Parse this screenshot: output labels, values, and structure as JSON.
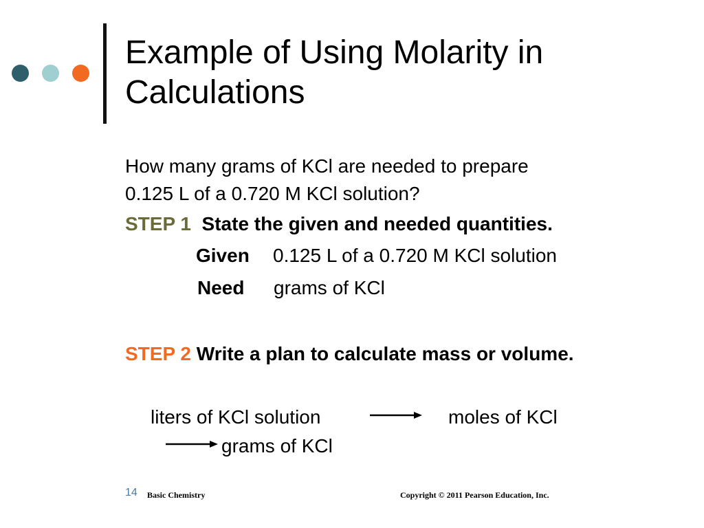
{
  "slide": {
    "title_line1": "Example of Using Molarity in",
    "title_line2": "Calculations",
    "question_line1": "How many grams of KCl are needed to prepare",
    "question_line2": "0.125 L of a 0.720 M KCl solution?"
  },
  "step1": {
    "label": "STEP 1",
    "text": "State the given and needed quantities.",
    "given_label": "Given",
    "given_value": "0.125 L of a 0.720 M KCl solution",
    "need_label": "Need",
    "need_value": "grams of KCl"
  },
  "step2": {
    "label": "STEP 2",
    "text": "Write a plan to calculate mass or volume.",
    "plan_from": "liters of KCl solution",
    "plan_mid": "moles of KCl",
    "plan_to": "grams of KCl"
  },
  "footer": {
    "page_number": "14",
    "book": "Basic Chemistry",
    "copyright": "Copyright © 2011 Pearson Education, Inc."
  },
  "colors": {
    "dot1": "#2f5f6a",
    "dot2": "#9fcfd1",
    "dot3": "#f26a22",
    "step1_label": "#6b6b3a",
    "step2_label": "#f26a22"
  },
  "icons": {
    "arrow": "right-arrow-icon"
  }
}
